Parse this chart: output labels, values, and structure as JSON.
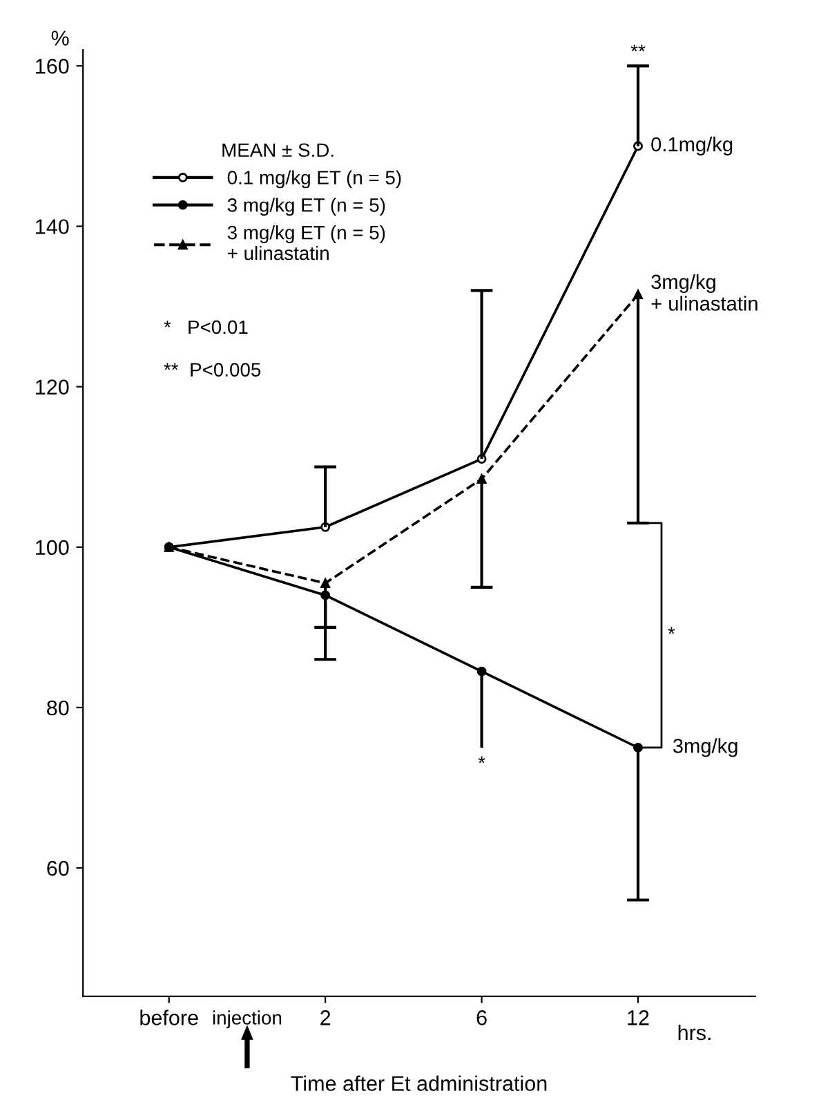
{
  "chart_data": {
    "type": "line",
    "categories": [
      "before",
      "2",
      "6",
      "12"
    ],
    "xlabel": "Time after Et administration",
    "ylabel": "%",
    "legend_title": "MEAN ± S.D.",
    "legend": "top left",
    "grid": false,
    "ylim": [
      44,
      162
    ],
    "yticks": [
      60,
      80,
      100,
      120,
      140,
      160
    ],
    "series": [
      {
        "name": "0.1 mg/kg ET (n = 5)",
        "color": "#000000",
        "marker": "circle",
        "line_style": "solid",
        "values": [
          100,
          102.5,
          111,
          150
        ],
        "errors": [
          null,
          [
            102.5,
            110
          ],
          [
            111,
            132
          ],
          [
            150,
            160
          ]
        ]
      },
      {
        "name": "3 mg/kg ET (n = 5)",
        "color": "#000000",
        "marker": "circle",
        "line_style": "solid",
        "values": [
          100,
          94,
          84.5,
          75
        ],
        "errors": [
          null,
          [
            86,
            94
          ],
          [
            75,
            84.5
          ],
          [
            56,
            75
          ]
        ]
      },
      {
        "name": "3 mg/kg ET (n = 5)\n+ ulinastatin",
        "color": "#000000",
        "marker": "triangle",
        "line_style": "dashed",
        "values": [
          100,
          95.5,
          108.5,
          131.5
        ],
        "errors": [
          null,
          [
            90,
            95.5
          ],
          [
            95,
            108.5
          ],
          [
            103,
            131.5
          ]
        ]
      }
    ],
    "annotations": [
      {
        "text": "**",
        "x": "12",
        "y": 160
      },
      {
        "text": "*",
        "x": "6",
        "y": 75
      },
      "*",
      {
        "text": "0.1mg/kg",
        "x": "12",
        "y": 150
      },
      {
        "text": "3mg/kg\n+ ulinastatin",
        "x": "12",
        "y": 131.5
      },
      {
        "text": "3mg/kg",
        "x": "12",
        "y": 75
      },
      "*   P<0.01",
      "**  P<0.005",
      "injection",
      "hrs."
    ]
  }
}
